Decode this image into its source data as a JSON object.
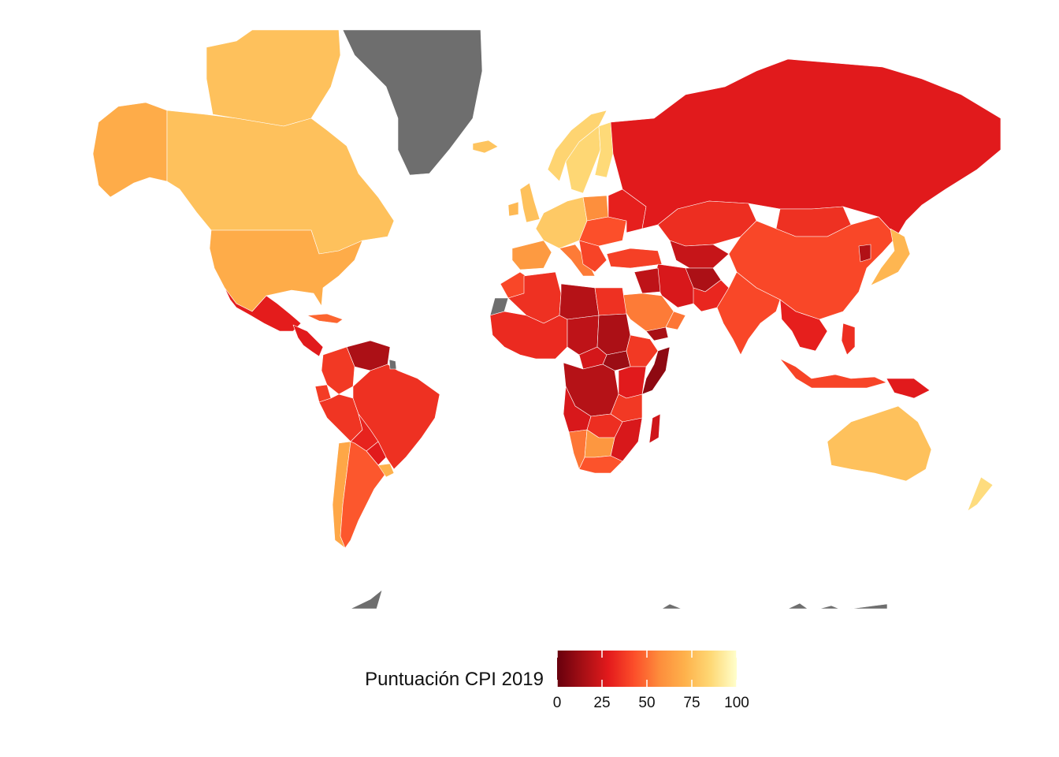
{
  "legend": {
    "title": "Puntuación CPI 2019",
    "ticks": [
      "0",
      "25",
      "50",
      "75",
      "100"
    ],
    "range": [
      0,
      100
    ],
    "palette": [
      "#67000d",
      "#a50f15",
      "#e31a1c",
      "#fc4e2a",
      "#fd8d3c",
      "#feb24c",
      "#fed976",
      "#ffffcc"
    ],
    "missing_color": "#6e6e6e"
  },
  "chart_data": {
    "type": "choropleth",
    "variable": "Puntuación CPI 2019",
    "scale": {
      "min": 0,
      "max": 100,
      "ticks": [
        0,
        25,
        50,
        75,
        100
      ]
    },
    "no_data_regions": [
      "Greenland",
      "Western Sahara",
      "French Guiana",
      "Antarctica"
    ],
    "regions": [
      {
        "name": "Canada",
        "value": 77
      },
      {
        "name": "Arctic Canada",
        "value": 77
      },
      {
        "name": "Alaska",
        "value": 69
      },
      {
        "name": "United States",
        "value": 69
      },
      {
        "name": "Mexico",
        "value": 29
      },
      {
        "name": "Central America",
        "value": 28
      },
      {
        "name": "Cuba",
        "value": 48
      },
      {
        "name": "Venezuela",
        "value": 16
      },
      {
        "name": "Colombia",
        "value": 37
      },
      {
        "name": "Ecuador",
        "value": 38
      },
      {
        "name": "Peru",
        "value": 36
      },
      {
        "name": "Bolivia",
        "value": 31
      },
      {
        "name": "Brazil",
        "value": 35
      },
      {
        "name": "Paraguay",
        "value": 28
      },
      {
        "name": "Chile",
        "value": 67
      },
      {
        "name": "Argentina",
        "value": 45
      },
      {
        "name": "Uruguay",
        "value": 71
      },
      {
        "name": "Iceland",
        "value": 78
      },
      {
        "name": "Norway",
        "value": 84
      },
      {
        "name": "Sweden",
        "value": 85
      },
      {
        "name": "Finland",
        "value": 86
      },
      {
        "name": "United Kingdom",
        "value": 77
      },
      {
        "name": "Ireland",
        "value": 74
      },
      {
        "name": "Western Europe",
        "value": 80
      },
      {
        "name": "Iberia",
        "value": 62
      },
      {
        "name": "Italy",
        "value": 53
      },
      {
        "name": "Poland",
        "value": 58
      },
      {
        "name": "Eastern Europe",
        "value": 43
      },
      {
        "name": "Balkans",
        "value": 40
      },
      {
        "name": "Turkey",
        "value": 39
      },
      {
        "name": "Ukraine",
        "value": 30
      },
      {
        "name": "Russia",
        "value": 28
      },
      {
        "name": "Kazakhstan",
        "value": 34
      },
      {
        "name": "Mongolia",
        "value": 35
      },
      {
        "name": "Central Asia",
        "value": 22
      },
      {
        "name": "Iran",
        "value": 26
      },
      {
        "name": "Afghanistan",
        "value": 16
      },
      {
        "name": "Pakistan",
        "value": 32
      },
      {
        "name": "Saudi Arabia",
        "value": 53
      },
      {
        "name": "Oman",
        "value": 52
      },
      {
        "name": "Iraq",
        "value": 20
      },
      {
        "name": "Yemen",
        "value": 15
      },
      {
        "name": "Egypt",
        "value": 35
      },
      {
        "name": "Libya",
        "value": 18
      },
      {
        "name": "Algeria",
        "value": 35
      },
      {
        "name": "Morocco",
        "value": 41
      },
      {
        "name": "West Africa",
        "value": 33
      },
      {
        "name": "Sudan",
        "value": 16
      },
      {
        "name": "South Sudan",
        "value": 12
      },
      {
        "name": "Chad",
        "value": 20
      },
      {
        "name": "Central African Republic",
        "value": 25
      },
      {
        "name": "Ethiopia",
        "value": 37
      },
      {
        "name": "Somalia",
        "value": 9
      },
      {
        "name": "Kenya",
        "value": 28
      },
      {
        "name": "DR Congo",
        "value": 18
      },
      {
        "name": "Angola",
        "value": 26
      },
      {
        "name": "Tanzania",
        "value": 37
      },
      {
        "name": "Mozambique",
        "value": 26
      },
      {
        "name": "Zambia",
        "value": 34
      },
      {
        "name": "Namibia",
        "value": 52
      },
      {
        "name": "Botswana",
        "value": 61
      },
      {
        "name": "South Africa",
        "value": 44
      },
      {
        "name": "Madagascar",
        "value": 24
      },
      {
        "name": "India",
        "value": 41
      },
      {
        "name": "China",
        "value": 41
      },
      {
        "name": "North Korea",
        "value": 17
      },
      {
        "name": "Japan",
        "value": 73
      },
      {
        "name": "Southeast Asia",
        "value": 30
      },
      {
        "name": "Indonesia",
        "value": 40
      },
      {
        "name": "Philippines",
        "value": 34
      },
      {
        "name": "Papua New Guinea",
        "value": 28
      },
      {
        "name": "Australia",
        "value": 77
      },
      {
        "name": "New Zealand",
        "value": 87
      }
    ]
  }
}
